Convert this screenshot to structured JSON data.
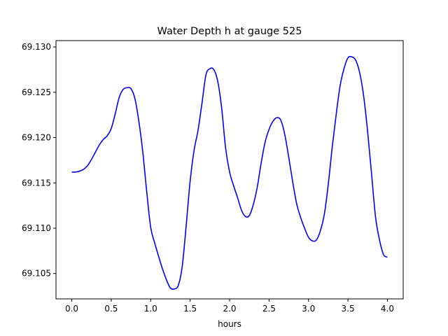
{
  "chart_data": {
    "type": "line",
    "title": "Water Depth h at gauge 525",
    "xlabel": "hours",
    "ylabel": "",
    "xlim": [
      -0.2,
      4.2
    ],
    "ylim": [
      69.1022,
      69.1307
    ],
    "xticks": [
      0.0,
      0.5,
      1.0,
      1.5,
      2.0,
      2.5,
      3.0,
      3.5,
      4.0
    ],
    "xtick_labels": [
      "0.0",
      "0.5",
      "1.0",
      "1.5",
      "2.0",
      "2.5",
      "3.0",
      "3.5",
      "4.0"
    ],
    "yticks": [
      69.105,
      69.11,
      69.115,
      69.12,
      69.125,
      69.13
    ],
    "ytick_labels": [
      "69.105",
      "69.110",
      "69.115",
      "69.120",
      "69.125",
      "69.130"
    ],
    "grid": false,
    "series": [
      {
        "color": "#0000ff",
        "x": [
          0.0,
          0.05,
          0.1,
          0.15,
          0.2,
          0.25,
          0.3,
          0.35,
          0.4,
          0.45,
          0.5,
          0.55,
          0.6,
          0.65,
          0.7,
          0.75,
          0.8,
          0.85,
          0.9,
          0.95,
          1.0,
          1.05,
          1.1,
          1.15,
          1.2,
          1.25,
          1.3,
          1.35,
          1.4,
          1.45,
          1.5,
          1.55,
          1.6,
          1.65,
          1.7,
          1.75,
          1.8,
          1.85,
          1.9,
          1.95,
          2.0,
          2.05,
          2.1,
          2.15,
          2.2,
          2.25,
          2.3,
          2.35,
          2.4,
          2.45,
          2.5,
          2.55,
          2.6,
          2.65,
          2.7,
          2.75,
          2.8,
          2.85,
          2.9,
          2.95,
          3.0,
          3.05,
          3.1,
          3.15,
          3.2,
          3.25,
          3.3,
          3.35,
          3.4,
          3.45,
          3.5,
          3.55,
          3.6,
          3.65,
          3.7,
          3.75,
          3.8,
          3.85,
          3.9,
          3.95,
          4.0
        ],
        "y": [
          69.1162,
          69.1162,
          69.1163,
          69.1165,
          69.1169,
          69.1176,
          69.1184,
          69.1192,
          69.1198,
          69.1202,
          69.121,
          69.1226,
          69.1244,
          69.1253,
          69.1255,
          69.1254,
          69.1243,
          69.1218,
          69.1184,
          69.114,
          69.1101,
          69.1084,
          69.1069,
          69.1055,
          69.1043,
          69.1034,
          69.1033,
          69.1037,
          69.1058,
          69.1103,
          69.1152,
          69.1186,
          69.1208,
          69.1238,
          69.1269,
          69.1276,
          69.1275,
          69.1262,
          69.1232,
          69.1188,
          69.1162,
          69.1147,
          69.1134,
          69.112,
          69.1113,
          69.1114,
          69.1126,
          69.1145,
          69.1172,
          69.1195,
          69.1209,
          69.1218,
          69.1222,
          69.1219,
          69.1203,
          69.1178,
          69.1151,
          69.1127,
          69.1112,
          69.11,
          69.109,
          69.1086,
          69.1087,
          69.1097,
          69.1115,
          69.1148,
          69.1189,
          69.1225,
          69.1257,
          69.1276,
          69.1288,
          69.1289,
          69.1285,
          69.1271,
          69.1245,
          69.1206,
          69.1159,
          69.1112,
          69.1087,
          69.1071,
          69.1068
        ]
      }
    ]
  }
}
